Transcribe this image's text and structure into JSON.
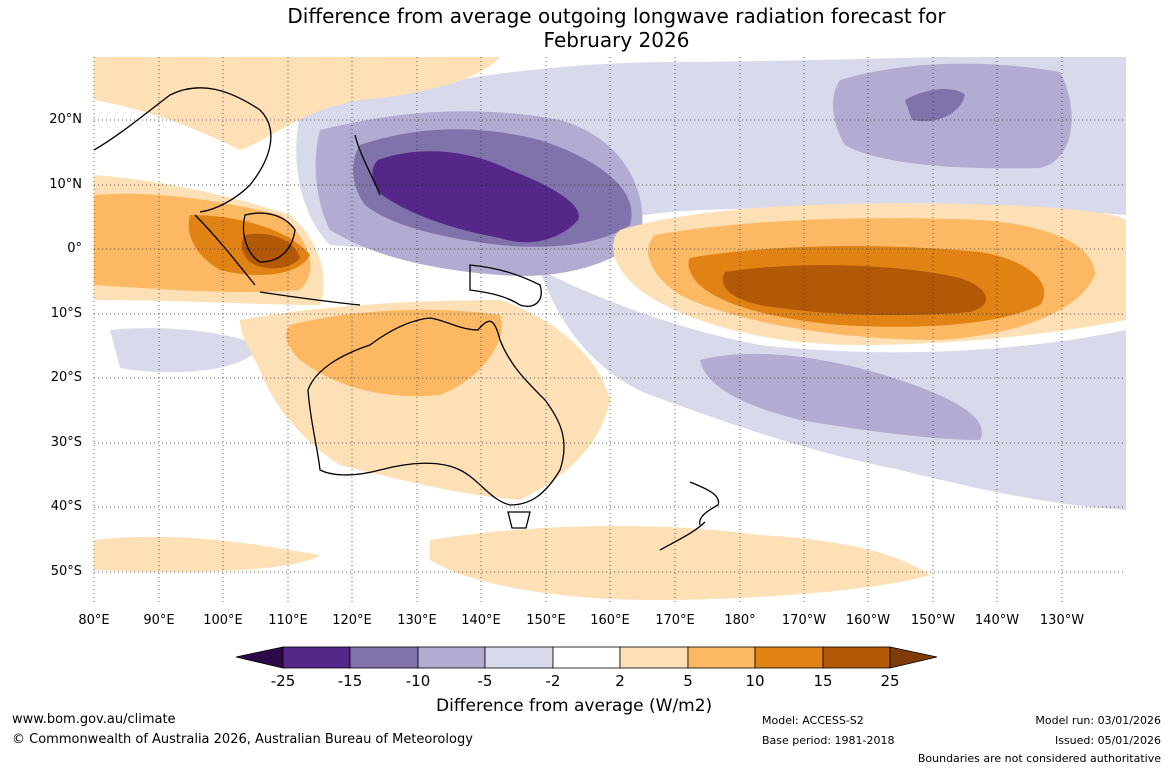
{
  "title_line1": "Difference from average outgoing longwave radiation forecast for",
  "title_line2": "February 2026",
  "lon_labels": [
    "80°E",
    "90°E",
    "100°E",
    "110°E",
    "120°E",
    "130°E",
    "140°E",
    "150°E",
    "160°E",
    "170°E",
    "180°",
    "170°W",
    "160°W",
    "150°W",
    "140°W",
    "130°W"
  ],
  "lat_labels": [
    "20°N",
    "10°N",
    "0°",
    "10°S",
    "20°S",
    "30°S",
    "40°S",
    "50°S"
  ],
  "colorbar": {
    "labels": [
      "-25",
      "-15",
      "-10",
      "-5",
      "-2",
      "2",
      "5",
      "10",
      "15",
      "25"
    ],
    "colors": {
      "lt_-25": "#2d0a4a",
      "-25_-15": "#542788",
      "-15_-10": "#8073ac",
      "-10_-5": "#b2abd2",
      "-5_-2": "#d8daeb",
      "-2_2": "#ffffff",
      "2_5": "#fee0b6",
      "5_10": "#fdb863",
      "10_15": "#e08214",
      "15_25": "#b35806",
      "gt_25": "#7f3b08"
    },
    "title": "Difference from average (W/m2)"
  },
  "footer": {
    "website": "www.bom.gov.au/climate",
    "copyright": "© Commonwealth of Australia 2026, Australian Bureau of Meteorology",
    "model": "Model: ACCESS-S2",
    "base_period": "Base period: 1981-2018",
    "model_run": "Model run: 03/01/2026",
    "issued": "Issued: 05/01/2026",
    "disclaimer": "Boundaries are not considered authoritative"
  }
}
